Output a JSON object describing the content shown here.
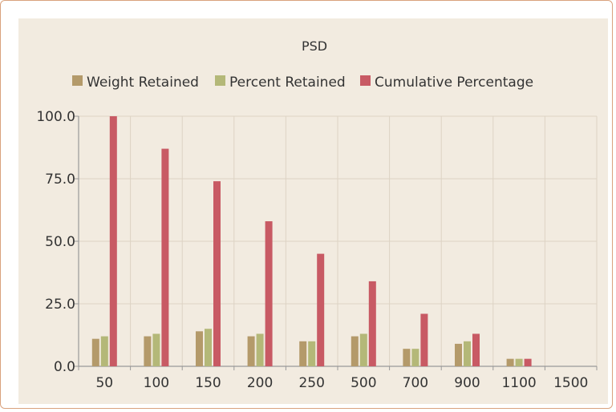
{
  "chart_data": {
    "type": "bar",
    "title": "PSD",
    "categories": [
      "50",
      "100",
      "150",
      "200",
      "250",
      "500",
      "700",
      "900",
      "1100",
      "1500"
    ],
    "series": [
      {
        "name": "Weight Retained",
        "color": "#b49a6a",
        "values": [
          11,
          12,
          14,
          12,
          10,
          12,
          7,
          9,
          3,
          0
        ]
      },
      {
        "name": "Percent Retained",
        "color": "#b4b878",
        "values": [
          12,
          13,
          15,
          13,
          10,
          13,
          7,
          10,
          3,
          0
        ]
      },
      {
        "name": "Cumulative Percentage",
        "color": "#c85a64",
        "values": [
          100,
          87,
          74,
          58,
          45,
          34,
          21,
          13,
          3,
          0
        ]
      }
    ],
    "ylim": [
      0,
      100
    ],
    "yticks": [
      "100.0",
      "75.0",
      "50.0",
      "25.0",
      "0.0"
    ],
    "ytick_values": [
      100,
      75,
      50,
      25,
      0
    ],
    "grid": true,
    "legend_position": "top"
  }
}
